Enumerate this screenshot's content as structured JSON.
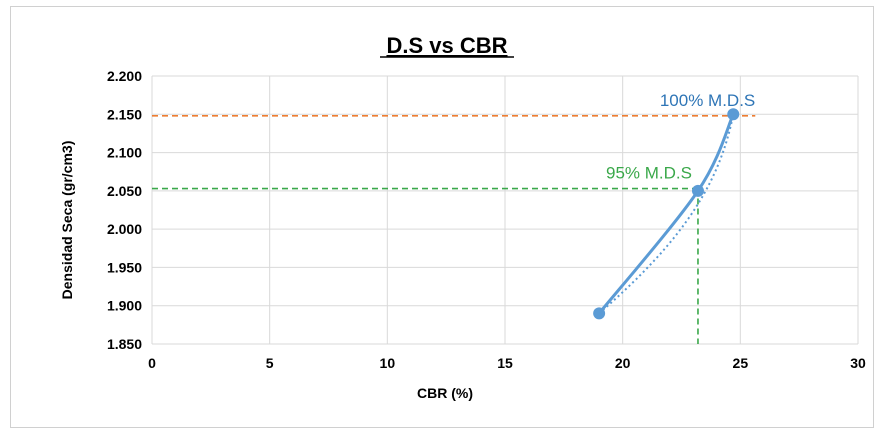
{
  "chart_data": {
    "type": "scatter",
    "title": "D.S vs CBR",
    "xlabel": "CBR (%)",
    "ylabel": "Densidad Seca (gr/cm3)",
    "xlim": [
      0,
      30
    ],
    "ylim": [
      1.85,
      2.2
    ],
    "x_ticks": [
      "0",
      "5",
      "10",
      "15",
      "20",
      "25",
      "30"
    ],
    "y_ticks": [
      "1.850",
      "1.900",
      "1.950",
      "2.000",
      "2.050",
      "2.100",
      "2.150",
      "2.200"
    ],
    "grid": true,
    "series": [
      {
        "points": [
          [
            19.0,
            1.89
          ],
          [
            23.2,
            2.05
          ],
          [
            24.7,
            2.15
          ]
        ],
        "color": "#5b9bd5",
        "smooth": true,
        "trendline": "dotted"
      }
    ],
    "reference_lines": [
      {
        "label": "100% M.D.S",
        "y": 2.148,
        "x": 24.7,
        "color": "#ed7d31"
      },
      {
        "label": "95% M.D.S",
        "y": 2.053,
        "x": 23.2,
        "color": "#3aa84a"
      }
    ]
  }
}
